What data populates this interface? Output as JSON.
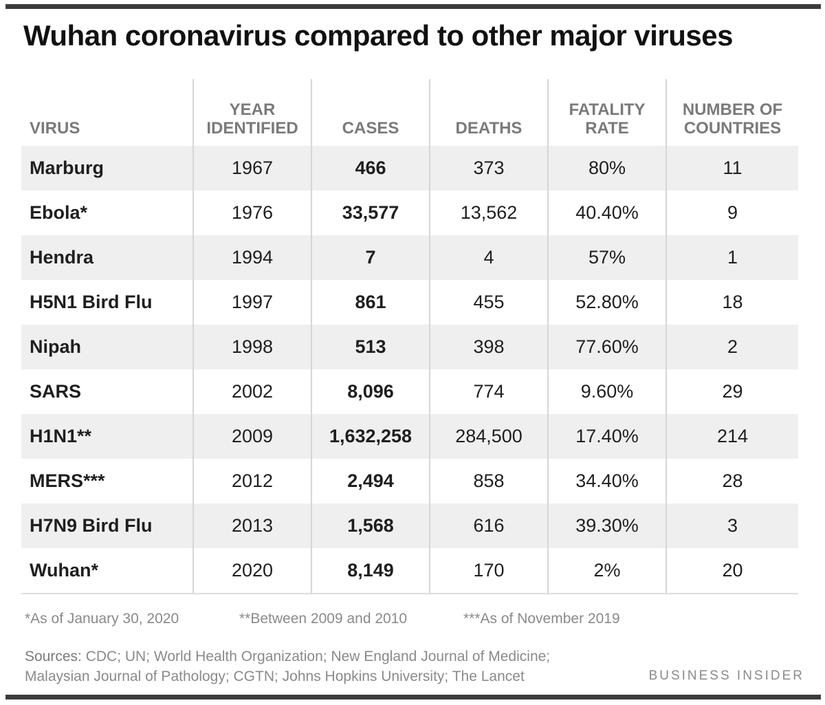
{
  "title": "Wuhan coronavirus compared to other major viruses",
  "headers": [
    [
      "VIRUS"
    ],
    [
      "YEAR",
      "IDENTIFIED"
    ],
    [
      "CASES"
    ],
    [
      "DEATHS"
    ],
    [
      "FATALITY",
      "RATE"
    ],
    [
      "NUMBER OF",
      "COUNTRIES"
    ]
  ],
  "rows": [
    {
      "virus": "Marburg",
      "year": "1967",
      "cases": "466",
      "deaths": "373",
      "fatality": "80%",
      "countries": "11"
    },
    {
      "virus": "Ebola*",
      "year": "1976",
      "cases": "33,577",
      "deaths": "13,562",
      "fatality": "40.40%",
      "countries": "9"
    },
    {
      "virus": "Hendra",
      "year": "1994",
      "cases": "7",
      "deaths": "4",
      "fatality": "57%",
      "countries": "1"
    },
    {
      "virus": "H5N1 Bird Flu",
      "year": "1997",
      "cases": "861",
      "deaths": "455",
      "fatality": "52.80%",
      "countries": "18"
    },
    {
      "virus": "Nipah",
      "year": "1998",
      "cases": "513",
      "deaths": "398",
      "fatality": "77.60%",
      "countries": "2"
    },
    {
      "virus": "SARS",
      "year": "2002",
      "cases": "8,096",
      "deaths": "774",
      "fatality": "9.60%",
      "countries": "29"
    },
    {
      "virus": "H1N1**",
      "year": "2009",
      "cases": "1,632,258",
      "deaths": "284,500",
      "fatality": "17.40%",
      "countries": "214"
    },
    {
      "virus": "MERS***",
      "year": "2012",
      "cases": "2,494",
      "deaths": "858",
      "fatality": "34.40%",
      "countries": "28"
    },
    {
      "virus": "H7N9 Bird Flu",
      "year": "2013",
      "cases": "1,568",
      "deaths": "616",
      "fatality": "39.30%",
      "countries": "3"
    },
    {
      "virus": "Wuhan*",
      "year": "2020",
      "cases": "8,149",
      "deaths": "170",
      "fatality": "2%",
      "countries": "20"
    }
  ],
  "notes": [
    "*As of January 30, 2020",
    "**Between 2009 and 2010",
    "***As of November 2019"
  ],
  "sources_label": "Sources:",
  "sources_line1": "CDC; UN; World Health Organization; New England Journal of Medicine;",
  "sources_line2": "Malaysian Journal of Pathology; CGTN; Johns Hopkins University; The Lancet",
  "brand": "BUSINESS INSIDER",
  "colors": {
    "header_text": "#7a7a7a",
    "stripe": "#efefef",
    "frame": "#3c3c3c"
  }
}
